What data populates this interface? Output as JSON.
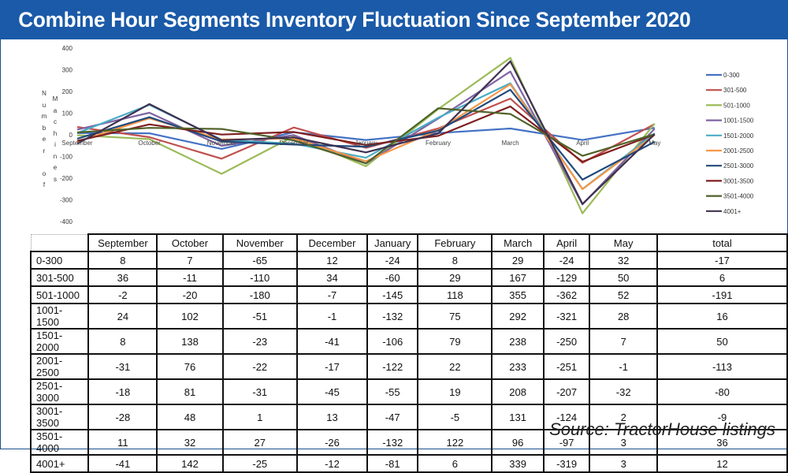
{
  "banner": {
    "title": "Combine Hour Segments Inventory Fluctuation Since September 2020"
  },
  "source": "Source: TractorHouse listings",
  "ylabel_words": [
    "Number of",
    "Machines"
  ],
  "chart_data": {
    "type": "line",
    "title": "Combine Hour Segments Inventory Fluctuation Since September 2020",
    "ylabel": "Number of Machines",
    "xlabel": "",
    "categories": [
      "September",
      "October",
      "November",
      "December",
      "January",
      "February",
      "March",
      "April",
      "May"
    ],
    "yticks": [
      400,
      300,
      200,
      100,
      0,
      -100,
      -200,
      -300,
      -400
    ],
    "ylim": [
      -400,
      400
    ],
    "legend_position": "right",
    "grid": false,
    "series": [
      {
        "name": "0-300",
        "color": "#4472c4",
        "values": [
          8,
          7,
          -65,
          12,
          -24,
          8,
          29,
          -24,
          32
        ]
      },
      {
        "name": "301-500",
        "color": "#c0504d",
        "values": [
          36,
          -11,
          -110,
          34,
          -60,
          29,
          167,
          -129,
          50
        ]
      },
      {
        "name": "501-1000",
        "color": "#9bbb59",
        "values": [
          -2,
          -20,
          -180,
          -7,
          -145,
          118,
          355,
          -362,
          52
        ]
      },
      {
        "name": "1001-1500",
        "color": "#8064a2",
        "values": [
          24,
          102,
          -51,
          -1,
          -132,
          75,
          292,
          -321,
          28
        ]
      },
      {
        "name": "1501-2000",
        "color": "#4bacc6",
        "values": [
          8,
          138,
          -23,
          -41,
          -106,
          79,
          238,
          -250,
          7
        ]
      },
      {
        "name": "2001-2500",
        "color": "#f79646",
        "values": [
          -31,
          76,
          -22,
          -17,
          -122,
          22,
          233,
          -251,
          -1
        ]
      },
      {
        "name": "2501-3000",
        "color": "#1f497d",
        "values": [
          -18,
          81,
          -31,
          -45,
          -55,
          19,
          208,
          -207,
          -32
        ]
      },
      {
        "name": "3001-3500",
        "color": "#7f1f1f",
        "values": [
          -28,
          48,
          1,
          13,
          -47,
          -5,
          131,
          -124,
          2
        ]
      },
      {
        "name": "3501-4000",
        "color": "#4f6228",
        "values": [
          11,
          32,
          27,
          -26,
          -132,
          122,
          96,
          -97,
          3
        ]
      },
      {
        "name": "4001+",
        "color": "#3f3151",
        "values": [
          -41,
          142,
          -25,
          -12,
          -81,
          6,
          339,
          -319,
          3
        ]
      }
    ],
    "table": {
      "headers": [
        "September",
        "October",
        "November",
        "December",
        "January",
        "February",
        "March",
        "April",
        "May",
        "total"
      ],
      "rows": [
        {
          "label": "0-300",
          "values": [
            "8",
            "7",
            "-65",
            "12",
            "-24",
            "8",
            "29",
            "-24",
            "32",
            "-17"
          ]
        },
        {
          "label": "301-500",
          "values": [
            "36",
            "-11",
            "-110",
            "34",
            "-60",
            "29",
            "167",
            "-129",
            "50",
            "6"
          ]
        },
        {
          "label": "501-1000",
          "values": [
            "-2",
            "-20",
            "-180",
            "-7",
            "-145",
            "118",
            "355",
            "-362",
            "52",
            "-191"
          ]
        },
        {
          "label": "1001-1500",
          "values": [
            "24",
            "102",
            "-51",
            "-1",
            "-132",
            "75",
            "292",
            "-321",
            "28",
            "16"
          ]
        },
        {
          "label": "1501-2000",
          "values": [
            "8",
            "138",
            "-23",
            "-41",
            "-106",
            "79",
            "238",
            "-250",
            "7",
            "50"
          ]
        },
        {
          "label": "2001-2500",
          "values": [
            "-31",
            "76",
            "-22",
            "-17",
            "-122",
            "22",
            "233",
            "-251",
            "-1",
            "-113"
          ]
        },
        {
          "label": "2501-3000",
          "values": [
            "-18",
            "81",
            "-31",
            "-45",
            "-55",
            "19",
            "208",
            "-207",
            "-32",
            "-80"
          ]
        },
        {
          "label": "3001-3500",
          "values": [
            "-28",
            "48",
            "1",
            "13",
            "-47",
            "-5",
            "131",
            "-124",
            "2",
            "-9"
          ]
        },
        {
          "label": "3501-4000",
          "values": [
            "11",
            "32",
            "27",
            "-26",
            "-132",
            "122",
            "96",
            "-97",
            "3",
            "36"
          ]
        },
        {
          "label": "4001+",
          "values": [
            "-41",
            "142",
            "-25",
            "-12",
            "-81",
            "6",
            "339",
            "-319",
            "3",
            "12"
          ]
        }
      ]
    }
  }
}
